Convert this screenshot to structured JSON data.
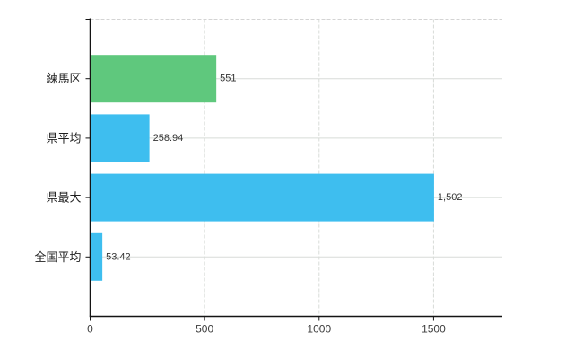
{
  "chart_data": {
    "type": "bar",
    "orientation": "horizontal",
    "title": "",
    "xlabel": "",
    "ylabel": "",
    "categories": [
      "練馬区",
      "県平均",
      "県最大",
      "全国平均"
    ],
    "values": [
      551,
      258.94,
      1502,
      53.42
    ],
    "value_labels": [
      "551",
      "258.94",
      "1,502",
      "53.42"
    ],
    "bar_colors": [
      "#5FC87D",
      "#3EBEEF",
      "#3EBEEF",
      "#3EBEEF"
    ],
    "x_ticks": [
      0,
      500,
      1000,
      1500
    ],
    "x_tick_labels": [
      "0",
      "500",
      "1000",
      "1500"
    ],
    "xlim": [
      0,
      1800
    ],
    "grid": true,
    "legend": false,
    "colors": {
      "background": "#ffffff",
      "grid_line": "#d8dcd8",
      "top_border": "#d4d4d4",
      "axis_line": "#141414",
      "tick_text": "#3c3c3c",
      "category_text": "#1f1f1f",
      "value_text": "#333333"
    }
  }
}
